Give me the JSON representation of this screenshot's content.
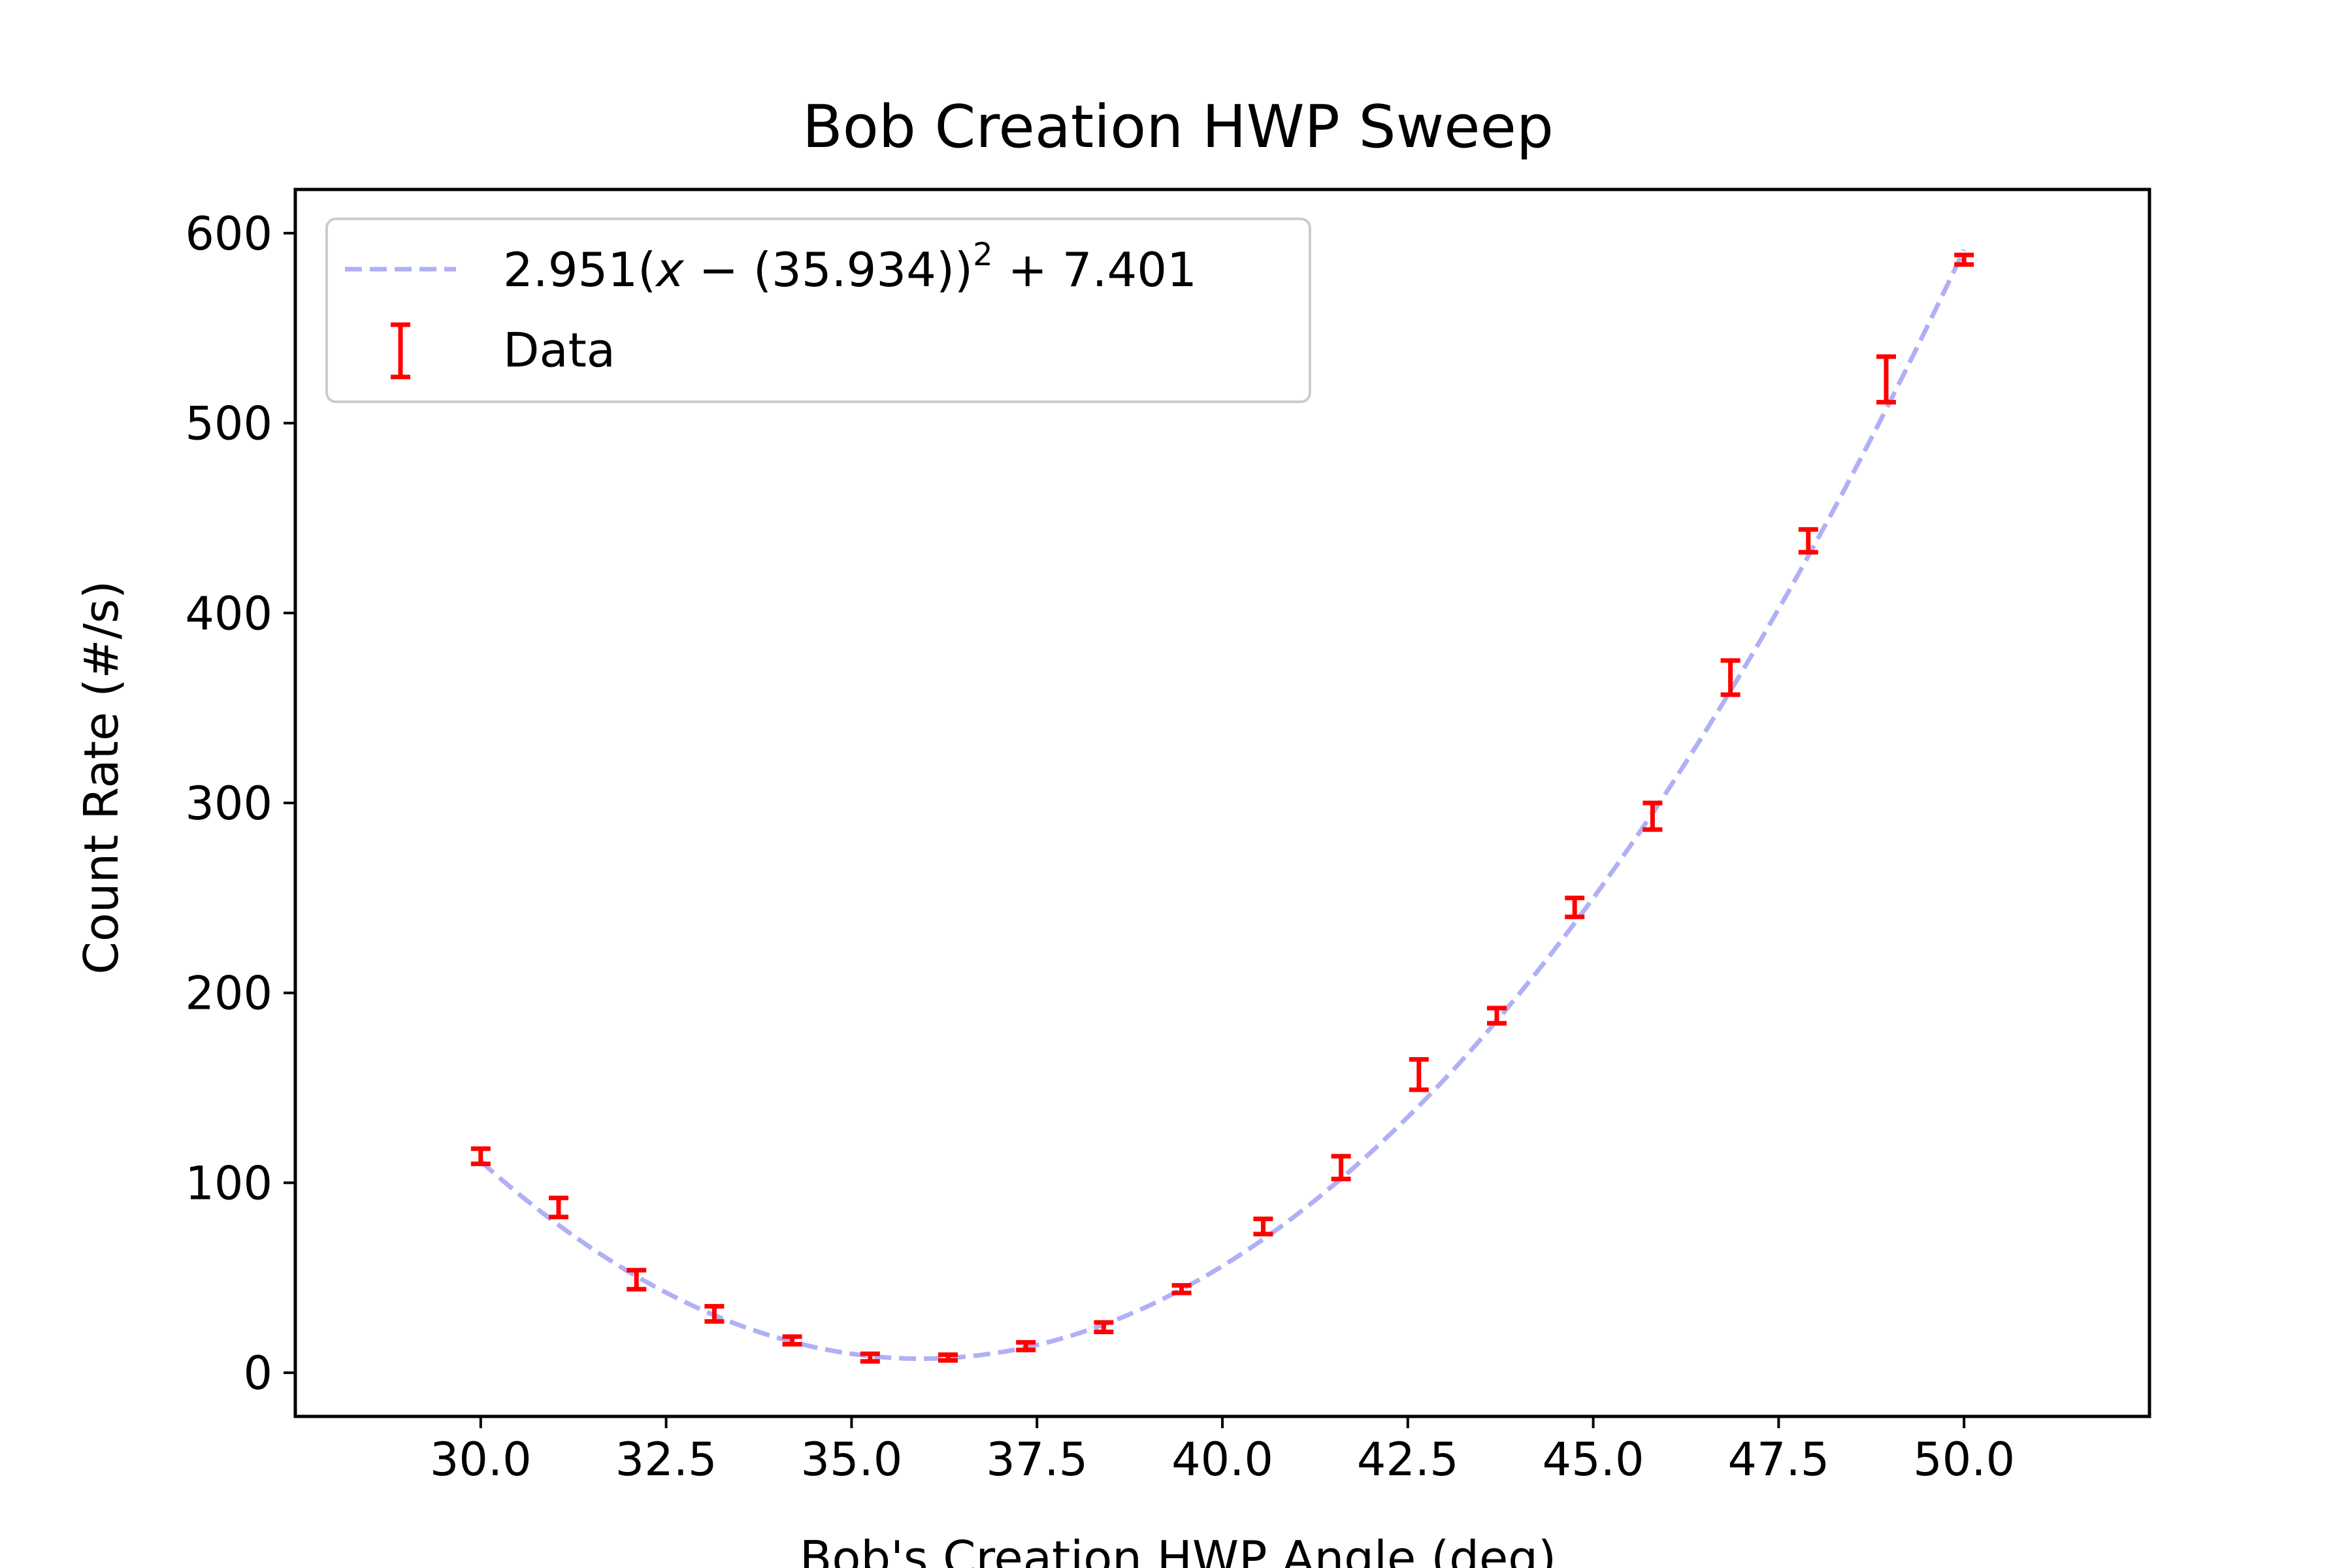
{
  "chart_data": {
    "type": "scatter",
    "title": "Bob Creation HWP Sweep",
    "xlabel": "Bob's Creation HWP Angle (deg)",
    "ylabel": "Count Rate (#/s)",
    "xlim": [
      27.5,
      52.5
    ],
    "ylim": [
      -23,
      623
    ],
    "xticks": [
      30.0,
      32.5,
      35.0,
      37.5,
      40.0,
      42.5,
      45.0,
      47.5,
      50.0
    ],
    "xtick_labels": [
      "30.0",
      "32.5",
      "35.0",
      "37.5",
      "40.0",
      "42.5",
      "45.0",
      "47.5",
      "50.0"
    ],
    "yticks": [
      0,
      100,
      200,
      300,
      400,
      500,
      600
    ],
    "ytick_labels": [
      "0",
      "100",
      "200",
      "300",
      "400",
      "500",
      "600"
    ],
    "grid": false,
    "legend_position": "upper-left",
    "fit": {
      "label_parts": {
        "prefix": "2.951(",
        "var": "x",
        "middle": " − (35.934))",
        "exp": "2",
        "suffix": " + 7.401"
      },
      "a": 2.951,
      "x0": 35.934,
      "c": 7.401,
      "color": "#b0b0f6",
      "style": "dashed"
    },
    "series": [
      {
        "name": "Data",
        "color": "#ff0000",
        "x": [
          30.0,
          31.05,
          32.1,
          33.15,
          34.2,
          35.25,
          36.3,
          37.35,
          38.4,
          39.45,
          40.55,
          41.6,
          42.65,
          43.7,
          44.75,
          45.8,
          46.85,
          47.9,
          48.95,
          50.0
        ],
        "y": [
          114,
          87,
          49,
          31,
          17,
          8,
          8,
          14,
          24,
          44,
          77,
          108,
          157,
          188,
          245,
          293,
          366,
          438,
          523,
          586
        ],
        "yerr": [
          4,
          5,
          5,
          4,
          2,
          2,
          1.5,
          2,
          2.5,
          2,
          4,
          6,
          8,
          4,
          5,
          7,
          9,
          6,
          12,
          2.5
        ]
      }
    ]
  }
}
